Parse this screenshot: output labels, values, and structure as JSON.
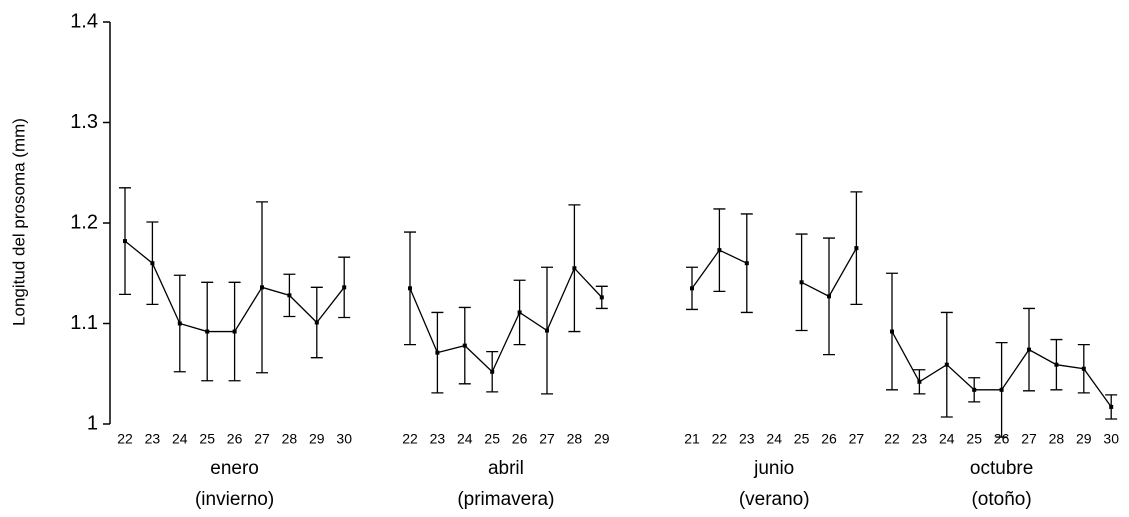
{
  "chart_data": {
    "type": "line",
    "ylabel": "Longitud del prosoma (mm)",
    "color": "#000000",
    "ylim": [
      1,
      1.4
    ],
    "yticks": [
      1,
      1.1,
      1.2,
      1.3,
      1.4
    ],
    "groups": [
      {
        "label": "enero",
        "sublabel": "(invierno)",
        "categories": [
          "22",
          "23",
          "24",
          "25",
          "26",
          "27",
          "28",
          "29",
          "30"
        ],
        "values": [
          1.182,
          1.16,
          1.1,
          1.092,
          1.092,
          1.136,
          1.128,
          1.101,
          1.136
        ],
        "errors": [
          0.053,
          0.041,
          0.048,
          0.049,
          0.049,
          0.085,
          0.021,
          0.035,
          0.03
        ]
      },
      {
        "label": "abril",
        "sublabel": "(primavera)",
        "categories": [
          "22",
          "23",
          "24",
          "25",
          "26",
          "27",
          "28",
          "29"
        ],
        "values": [
          1.135,
          1.071,
          1.078,
          1.052,
          1.111,
          1.093,
          1.155,
          1.126
        ],
        "errors": [
          0.056,
          0.04,
          0.038,
          0.02,
          0.032,
          0.063,
          0.063,
          0.011
        ]
      },
      {
        "label": "junio",
        "sublabel": "(verano)",
        "categories": [
          "21",
          "22",
          "23",
          "24",
          "25",
          "26",
          "27"
        ],
        "values": [
          1.135,
          1.173,
          1.16,
          null,
          1.141,
          1.127,
          1.175
        ],
        "errors": [
          0.021,
          0.041,
          0.049,
          null,
          0.048,
          0.058,
          0.056
        ]
      },
      {
        "label": "octubre",
        "sublabel": "(otoño)",
        "categories": [
          "22",
          "23",
          "24",
          "25",
          "26",
          "27",
          "28",
          "29",
          "30"
        ],
        "values": [
          1.092,
          1.042,
          1.059,
          1.034,
          1.034,
          1.074,
          1.059,
          1.055,
          1.017
        ],
        "errors": [
          0.058,
          0.012,
          0.052,
          0.012,
          0.047,
          0.041,
          0.025,
          0.024,
          0.012
        ]
      }
    ]
  }
}
